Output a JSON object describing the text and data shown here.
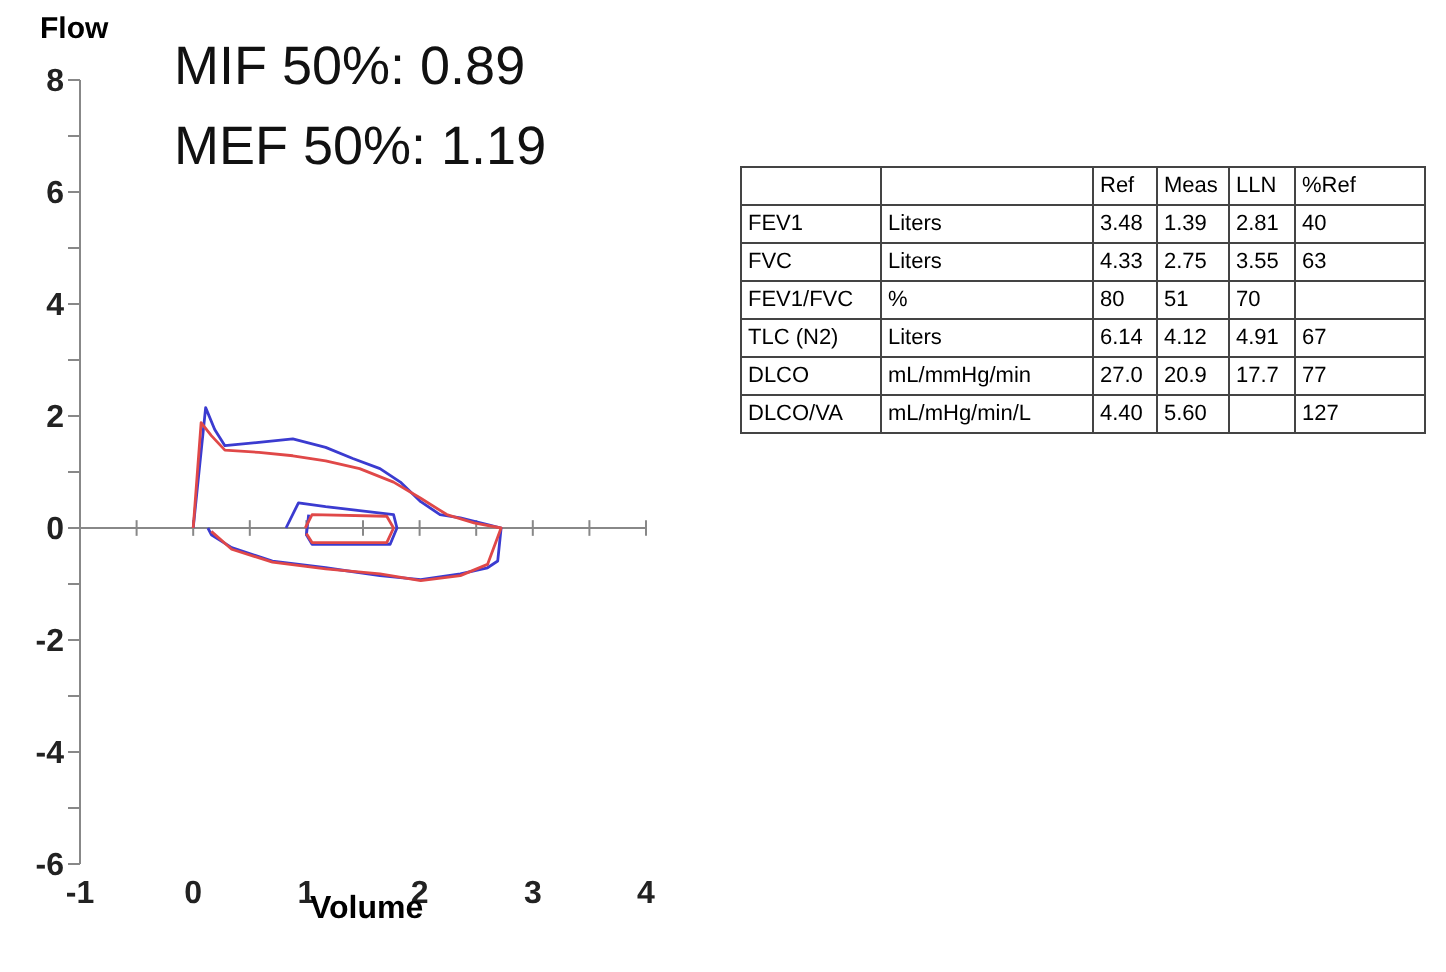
{
  "chart_data": [
    {
      "type": "line",
      "xlabel": "Volume",
      "ylabel": "Flow",
      "annotations": [
        "MIF 50%: 0.89",
        "MEF 50%: 1.19"
      ],
      "xlim": [
        -1,
        4
      ],
      "ylim": [
        -6,
        8
      ],
      "xticks": [
        -1,
        {
          "value": -0.5,
          "label": null
        },
        0,
        {
          "value": 0.5,
          "label": null
        },
        1,
        {
          "value": 1.5,
          "label": null
        },
        2,
        {
          "value": 2.5,
          "label": null
        },
        3,
        {
          "value": 3.5,
          "label": null
        },
        4
      ],
      "yticks": [
        -6,
        {
          "value": -5,
          "label": null
        },
        -4,
        {
          "value": -3,
          "label": null
        },
        -2,
        {
          "value": -1,
          "label": null
        },
        0,
        {
          "value": 1,
          "label": null
        },
        2,
        {
          "value": 3,
          "label": null
        },
        4,
        {
          "value": 5,
          "label": null
        },
        6,
        {
          "value": 7,
          "label": null
        },
        8
      ],
      "marker": "none",
      "series": [
        {
          "color": "#3b3bd0",
          "x": [
            0,
            0.11,
            0.19,
            0.28,
            0.58,
            0.88,
            1.17,
            1.41,
            1.65,
            1.83,
            2.01,
            2.18,
            2.36,
            2.6,
            2.72,
            2.69,
            2.6,
            2.36,
            2.01,
            1.65,
            1.17,
            0.7,
            0.34,
            0.16,
            0.13
          ],
          "values": [
            0,
            2.15,
            1.76,
            1.47,
            1.53,
            1.59,
            1.44,
            1.24,
            1.06,
            0.82,
            0.47,
            0.24,
            0.18,
            0.06,
            0,
            -0.59,
            -0.71,
            -0.82,
            -0.92,
            -0.85,
            -0.71,
            -0.59,
            -0.35,
            -0.12,
            0
          ]
        },
        {
          "color": "#3b3bd0",
          "x": [
            0.82,
            0.93,
            1.17,
            1.77,
            1.8,
            1.74,
            1.05,
            1.0,
            1.02
          ],
          "values": [
            0,
            0.45,
            0.38,
            0.24,
            0,
            -0.29,
            -0.29,
            -0.12,
            0.24
          ]
        },
        {
          "color": "#e04848",
          "x": [
            0,
            0.07,
            0.16,
            0.28,
            0.58,
            0.88,
            1.17,
            1.47,
            1.77,
            2.01,
            2.24,
            2.48,
            2.72,
            2.6,
            2.36,
            2.01,
            1.65,
            1.17,
            0.7,
            0.34,
            0.16
          ],
          "values": [
            0,
            1.88,
            1.65,
            1.39,
            1.35,
            1.29,
            1.2,
            1.06,
            0.82,
            0.53,
            0.24,
            0.09,
            0,
            -0.65,
            -0.85,
            -0.94,
            -0.82,
            -0.73,
            -0.61,
            -0.38,
            -0.06
          ]
        },
        {
          "color": "#e04848",
          "x": [
            0.99,
            1.05,
            1.71,
            1.77,
            1.71,
            1.05,
            1.0
          ],
          "values": [
            0,
            0.24,
            0.21,
            0,
            -0.26,
            -0.26,
            -0.1
          ]
        }
      ]
    },
    {
      "type": "other",
      "categories": [
        null,
        null,
        "Ref",
        "Meas",
        "LLN",
        "%Ref"
      ],
      "cell_labels": [
        [
          "FEV1",
          "Liters",
          "3.48",
          "1.39",
          "2.81",
          "40"
        ],
        [
          "FVC",
          "Liters",
          "4.33",
          "2.75",
          "3.55",
          "63"
        ],
        [
          "FEV1/FVC",
          "%",
          "80",
          "51",
          "70",
          null
        ],
        [
          "TLC (N2)",
          "Liters",
          "6.14",
          "4.12",
          "4.91",
          "67"
        ],
        [
          "DLCO",
          "mL/mmHg/min",
          "27.0",
          "20.9",
          "17.7",
          "77"
        ],
        [
          "DLCO/VA",
          "mL/mHg/min/L",
          "4.40",
          "5.60",
          null,
          "127"
        ]
      ]
    }
  ]
}
